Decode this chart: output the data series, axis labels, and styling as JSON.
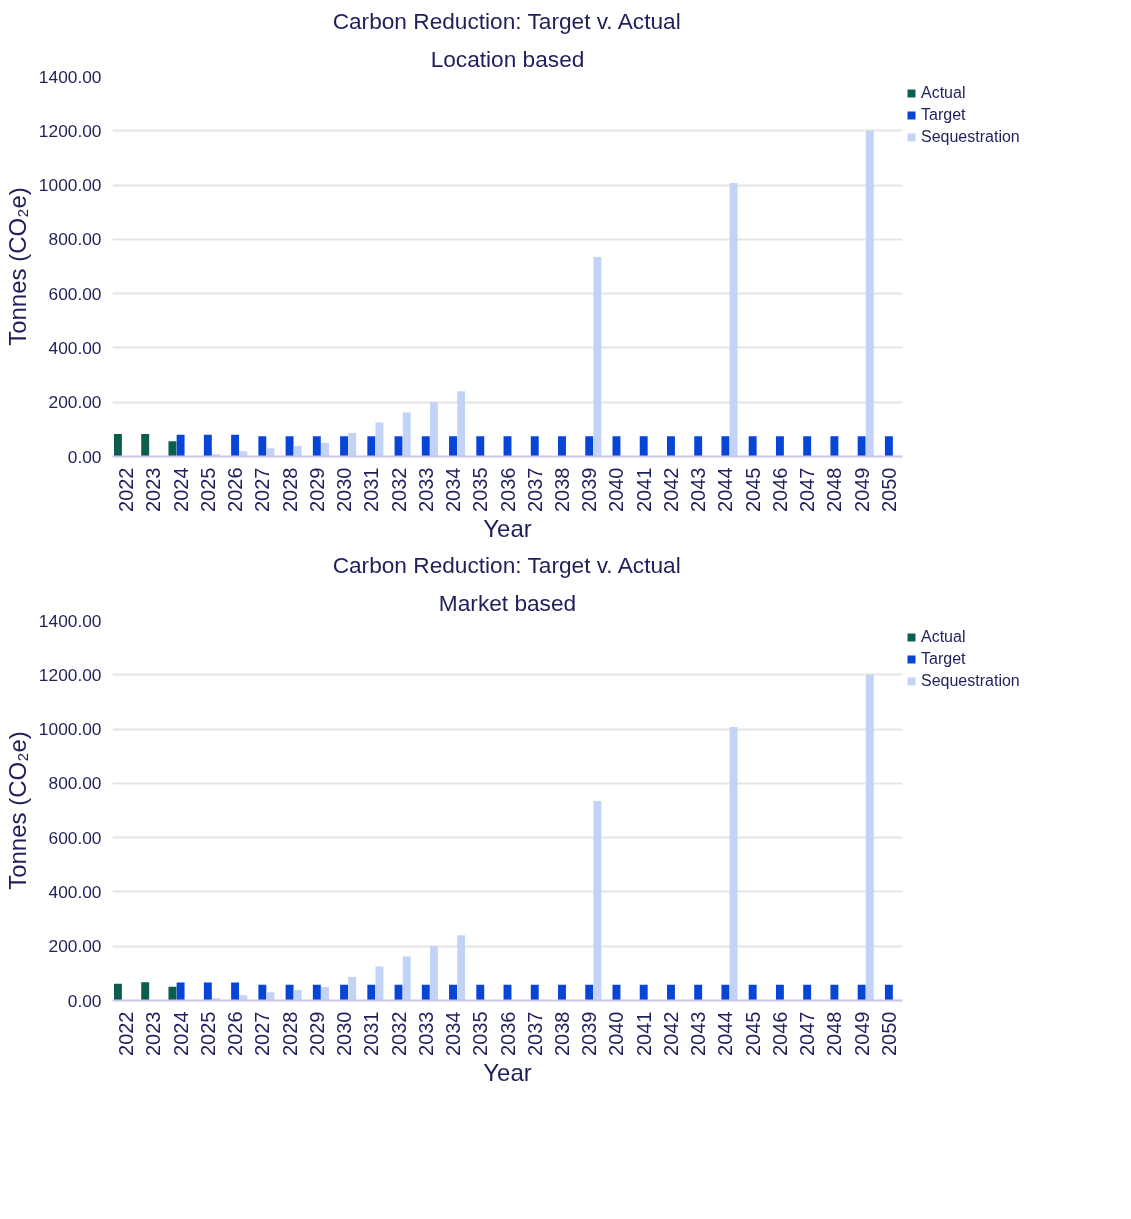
{
  "chart_data": [
    {
      "type": "bar",
      "title": "Carbon Reduction: Target v. Actual",
      "subtitle": "Location based",
      "xlabel": "Year",
      "ylabel": "Tonnes (CO₂e)",
      "categories": [
        "2022",
        "2023",
        "2024",
        "2025",
        "2026",
        "2027",
        "2028",
        "2029",
        "2030",
        "2031",
        "2032",
        "2033",
        "2034",
        "2035",
        "2036",
        "2037",
        "2038",
        "2039",
        "2040",
        "2041",
        "2042",
        "2043",
        "2044",
        "2045",
        "2046",
        "2047",
        "2048",
        "2049",
        "2050"
      ],
      "series": [
        {
          "name": "Actual",
          "color": "#0b5e4e",
          "values": [
            83,
            83,
            56,
            null,
            null,
            null,
            null,
            null,
            null,
            null,
            null,
            null,
            null,
            null,
            null,
            null,
            null,
            null,
            null,
            null,
            null,
            null,
            null,
            null,
            null,
            null,
            null,
            null,
            null
          ]
        },
        {
          "name": "Target",
          "color": "#0645d6",
          "values": [
            null,
            null,
            80,
            80,
            80,
            75,
            75,
            75,
            75,
            75,
            75,
            75,
            75,
            75,
            75,
            75,
            75,
            75,
            75,
            75,
            75,
            75,
            75,
            75,
            75,
            75,
            75,
            75,
            75
          ]
        },
        {
          "name": "Sequestration",
          "color": "#c3d3f5",
          "values": [
            null,
            null,
            null,
            8,
            19,
            30,
            39,
            50,
            87,
            125,
            162,
            201,
            240,
            null,
            null,
            null,
            null,
            735,
            null,
            null,
            null,
            null,
            1008,
            null,
            null,
            null,
            null,
            1200,
            null
          ]
        }
      ],
      "ylim": [
        0,
        1400
      ],
      "yticks": [
        {
          "value": 0,
          "label": "0.00"
        },
        {
          "value": 200,
          "label": "200.00"
        },
        {
          "value": 400,
          "label": "400.00"
        },
        {
          "value": 600,
          "label": "600.00"
        },
        {
          "value": 800,
          "label": "800.00"
        },
        {
          "value": 1000,
          "label": "1000.00"
        },
        {
          "value": 1200,
          "label": "1200.00"
        },
        {
          "value": 1400,
          "label": "1400.00"
        }
      ],
      "grid": "y",
      "legend": "top right"
    },
    {
      "type": "bar",
      "title": "Carbon Reduction: Target v. Actual",
      "subtitle": "Market based",
      "xlabel": "Year",
      "ylabel": "Tonnes (CO₂e)",
      "categories": [
        "2022",
        "2023",
        "2024",
        "2025",
        "2026",
        "2027",
        "2028",
        "2029",
        "2030",
        "2031",
        "2032",
        "2033",
        "2034",
        "2035",
        "2036",
        "2037",
        "2038",
        "2039",
        "2040",
        "2041",
        "2042",
        "2043",
        "2044",
        "2045",
        "2046",
        "2047",
        "2048",
        "2049",
        "2050"
      ],
      "series": [
        {
          "name": "Actual",
          "color": "#0b5e4e",
          "values": [
            62,
            67,
            51,
            null,
            null,
            null,
            null,
            null,
            null,
            null,
            null,
            null,
            null,
            null,
            null,
            null,
            null,
            null,
            null,
            null,
            null,
            null,
            null,
            null,
            null,
            null,
            null,
            null,
            null
          ]
        },
        {
          "name": "Target",
          "color": "#0645d6",
          "values": [
            null,
            null,
            66,
            66,
            66,
            58,
            58,
            58,
            58,
            58,
            58,
            58,
            58,
            58,
            58,
            58,
            58,
            58,
            58,
            58,
            58,
            58,
            58,
            58,
            58,
            58,
            58,
            58,
            58
          ]
        },
        {
          "name": "Sequestration",
          "color": "#c3d3f5",
          "values": [
            null,
            null,
            null,
            8,
            19,
            30,
            39,
            50,
            87,
            125,
            162,
            201,
            240,
            null,
            null,
            null,
            null,
            735,
            null,
            null,
            null,
            null,
            1008,
            null,
            null,
            null,
            null,
            1200,
            null
          ]
        }
      ],
      "ylim": [
        0,
        1400
      ],
      "yticks": [
        {
          "value": 0,
          "label": "0.00"
        },
        {
          "value": 200,
          "label": "200.00"
        },
        {
          "value": 400,
          "label": "400.00"
        },
        {
          "value": 600,
          "label": "600.00"
        },
        {
          "value": 800,
          "label": "800.00"
        },
        {
          "value": 1000,
          "label": "1000.00"
        },
        {
          "value": 1200,
          "label": "1200.00"
        },
        {
          "value": 1400,
          "label": "1400.00"
        }
      ],
      "grid": "y",
      "legend": "top right"
    }
  ]
}
